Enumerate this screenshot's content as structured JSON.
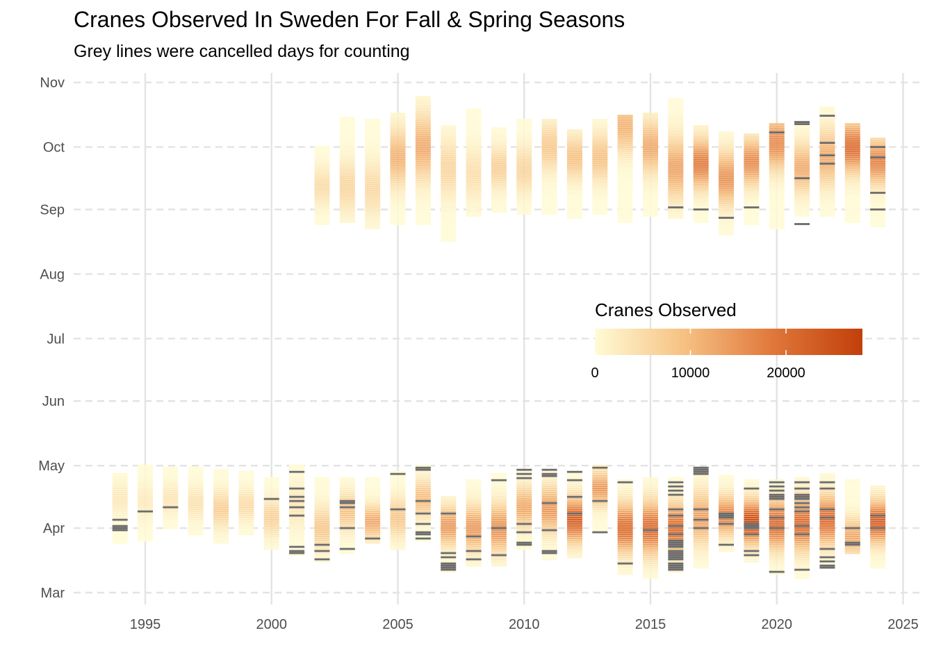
{
  "chart_data": {
    "type": "heatmap",
    "title": "Cranes Observed In Sweden For Fall & Spring Seasons",
    "subtitle": "Grey lines were cancelled days for counting",
    "xlabel": "",
    "ylabel": "",
    "x_ticks": [
      "1995",
      "2000",
      "2005",
      "2010",
      "2015",
      "2020",
      "2025"
    ],
    "y_ticks": [
      "Mar",
      "Apr",
      "May",
      "Jun",
      "Jul",
      "Aug",
      "Sep",
      "Oct",
      "Nov"
    ],
    "xlim": [
      1992.2,
      2025.7
    ],
    "grid": true,
    "legend": {
      "title": "Cranes Observed",
      "ticks": [
        "0",
        "10000",
        "20000"
      ],
      "min": 0,
      "max": 28000,
      "colors": [
        "#fffbd5",
        "#f6c183",
        "#e0773a",
        "#c13f0a"
      ],
      "placement": "inside-center-right",
      "cancelled_color": "#6b6b6b"
    },
    "spring": [
      {
        "year": 1994,
        "start": "Mar 25",
        "end": "Apr 27",
        "peak": "Apr 15",
        "peak_value": 3000,
        "cancelled": [
          "Mar 31",
          "Apr 1",
          "Apr 2",
          "Apr 5"
        ]
      },
      {
        "year": 1995,
        "start": "Mar 26",
        "end": "May 1",
        "peak": "Apr 14",
        "peak_value": 2500,
        "cancelled": [
          "Apr 9"
        ]
      },
      {
        "year": 1996,
        "start": "Apr 1",
        "end": "Apr 30",
        "peak": "Apr 15",
        "peak_value": 3500,
        "cancelled": [
          "Apr 11"
        ]
      },
      {
        "year": 1997,
        "start": "Mar 29",
        "end": "Apr 30",
        "peak": "Apr 13",
        "peak_value": 4000,
        "cancelled": []
      },
      {
        "year": 1998,
        "start": "Mar 25",
        "end": "Apr 29",
        "peak": "Apr 10",
        "peak_value": 7000,
        "cancelled": []
      },
      {
        "year": 1999,
        "start": "Mar 29",
        "end": "Apr 28",
        "peak": "Apr 12",
        "peak_value": 5000,
        "cancelled": []
      },
      {
        "year": 2000,
        "start": "Mar 22",
        "end": "Apr 25",
        "peak": "Apr 6",
        "peak_value": 6500,
        "cancelled": [
          "Apr 15"
        ]
      },
      {
        "year": 2001,
        "start": "Mar 19",
        "end": "May 1",
        "peak": "Apr 12",
        "peak_value": 3500,
        "cancelled": [
          "Mar 20",
          "Mar 21",
          "Mar 23",
          "Apr 7",
          "Apr 11",
          "Apr 14",
          "Apr 16",
          "Apr 20",
          "Apr 28"
        ]
      },
      {
        "year": 2002,
        "start": "Mar 16",
        "end": "Apr 25",
        "peak": "Apr 1",
        "peak_value": 8000,
        "cancelled": [
          "Mar 17",
          "Mar 21",
          "Mar 24"
        ]
      },
      {
        "year": 2003,
        "start": "Mar 20",
        "end": "Apr 25",
        "peak": "Apr 9",
        "peak_value": 8500,
        "cancelled": [
          "Mar 22",
          "Apr 1",
          "Apr 11",
          "Apr 13",
          "Apr 14"
        ]
      },
      {
        "year": 2004,
        "start": "Mar 25",
        "end": "Apr 25",
        "peak": "Apr 4",
        "peak_value": 12000,
        "cancelled": [
          "Mar 27"
        ]
      },
      {
        "year": 2005,
        "start": "Mar 22",
        "end": "Apr 28",
        "peak": "Apr 6",
        "peak_value": 8000,
        "cancelled": [
          "Apr 10",
          "Apr 27"
        ]
      },
      {
        "year": 2006,
        "start": "Mar 26",
        "end": "May 1",
        "peak": "Apr 15",
        "peak_value": 9500,
        "cancelled": [
          "Mar 27",
          "Mar 29",
          "Mar 30",
          "Apr 3",
          "Apr 8",
          "Apr 14",
          "Apr 29",
          "Apr 30"
        ]
      },
      {
        "year": 2007,
        "start": "Mar 11",
        "end": "Apr 16",
        "peak": "Apr 2",
        "peak_value": 14000,
        "cancelled": [
          "Mar 12",
          "Mar 13",
          "Mar 14",
          "Mar 15",
          "Mar 18",
          "Mar 20",
          "Apr 8"
        ]
      },
      {
        "year": 2008,
        "start": "Mar 14",
        "end": "Apr 24",
        "peak": "Apr 1",
        "peak_value": 14000,
        "cancelled": [
          "Mar 17",
          "Mar 21",
          "Mar 28"
        ]
      },
      {
        "year": 2009,
        "start": "Mar 14",
        "end": "Apr 27",
        "peak": "Apr 1",
        "peak_value": 15000,
        "cancelled": [
          "Mar 19",
          "Apr 1",
          "Apr 24"
        ]
      },
      {
        "year": 2010,
        "start": "Mar 22",
        "end": "Apr 29",
        "peak": "Apr 11",
        "peak_value": 12000,
        "cancelled": [
          "Mar 24",
          "Mar 25",
          "Mar 30",
          "Apr 3",
          "Apr 25",
          "Apr 27",
          "Apr 29"
        ]
      },
      {
        "year": 2011,
        "start": "Mar 17",
        "end": "Apr 29",
        "peak": "Apr 10",
        "peak_value": 14000,
        "cancelled": [
          "Mar 20",
          "Mar 21",
          "Mar 31",
          "Apr 13",
          "Apr 26",
          "Apr 27",
          "Apr 29"
        ]
      },
      {
        "year": 2012,
        "start": "Mar 18",
        "end": "Apr 28",
        "peak": "Apr 5",
        "peak_value": 22000,
        "cancelled": [
          "Apr 8",
          "Apr 16",
          "Apr 24",
          "Apr 28"
        ]
      },
      {
        "year": 2013,
        "start": "Mar 30",
        "end": "May 1",
        "peak": "Apr 20",
        "peak_value": 14000,
        "cancelled": [
          "Mar 30",
          "Apr 14",
          "Apr 30"
        ]
      },
      {
        "year": 2014,
        "start": "Mar 10",
        "end": "Apr 24",
        "peak": "Apr 1",
        "peak_value": 20000,
        "cancelled": [
          "Mar 15",
          "Apr 23"
        ]
      },
      {
        "year": 2015,
        "start": "Mar 8",
        "end": "Apr 25",
        "peak": "Apr 1",
        "peak_value": 20000,
        "cancelled": [
          "Mar 31"
        ]
      },
      {
        "year": 2016,
        "start": "Mar 11",
        "end": "Apr 25",
        "peak": "Apr 1",
        "peak_value": 20000,
        "cancelled": [
          "Mar 12",
          "Mar 13",
          "Mar 14",
          "Mar 15",
          "Mar 17",
          "Mar 18",
          "Mar 19",
          "Mar 20",
          "Mar 21",
          "Mar 23",
          "Mar 24",
          "Mar 25",
          "Mar 26",
          "Mar 29",
          "Apr 2",
          "Apr 7",
          "Apr 10",
          "Apr 17",
          "Apr 19",
          "Apr 21",
          "Apr 23"
        ]
      },
      {
        "year": 2017,
        "start": "Mar 13",
        "end": "Apr 30",
        "peak": "Apr 6",
        "peak_value": 13000,
        "cancelled": [
          "Apr 1",
          "Apr 5",
          "Apr 10",
          "Apr 27",
          "Apr 28",
          "Apr 29",
          "Apr 30"
        ]
      },
      {
        "year": 2018,
        "start": "Mar 21",
        "end": "Apr 26",
        "peak": "Apr 7",
        "peak_value": 17000,
        "cancelled": [
          "Mar 24",
          "Apr 3",
          "Apr 6",
          "Apr 7",
          "Apr 8"
        ]
      },
      {
        "year": 2019,
        "start": "Mar 16",
        "end": "Apr 24",
        "peak": "Apr 4",
        "peak_value": 25000,
        "cancelled": [
          "Mar 19",
          "Mar 21",
          "Mar 29",
          "Apr 1",
          "Apr 2",
          "Apr 3",
          "Apr 20"
        ]
      },
      {
        "year": 2020,
        "start": "Mar 10",
        "end": "Apr 24",
        "peak": "Apr 3",
        "peak_value": 20000,
        "cancelled": [
          "Mar 11",
          "Apr 1",
          "Apr 6",
          "Apr 10",
          "Apr 15",
          "Apr 16",
          "Apr 17",
          "Apr 19",
          "Apr 21",
          "Apr 23"
        ]
      },
      {
        "year": 2021,
        "start": "Mar 8",
        "end": "Apr 25",
        "peak": "Apr 3",
        "peak_value": 20000,
        "cancelled": [
          "Mar 12",
          "Mar 29",
          "Apr 2",
          "Apr 9",
          "Apr 11",
          "Apr 13",
          "Apr 15",
          "Apr 16",
          "Apr 17",
          "Apr 20",
          "Apr 23"
        ]
      },
      {
        "year": 2022,
        "start": "Mar 13",
        "end": "Apr 27",
        "peak": "Apr 5",
        "peak_value": 20000,
        "cancelled": [
          "Mar 13",
          "Mar 14",
          "Mar 16",
          "Mar 18",
          "Mar 22",
          "Apr 6",
          "Apr 10",
          "Apr 20",
          "Apr 23"
        ]
      },
      {
        "year": 2023,
        "start": "Mar 20",
        "end": "Apr 24",
        "peak": "Mar 28",
        "peak_value": 12000,
        "cancelled": [
          "Mar 24",
          "Mar 25",
          "Apr 1"
        ]
      },
      {
        "year": 2024,
        "start": "Mar 13",
        "end": "Apr 21",
        "peak": "Apr 4",
        "peak_value": 22000,
        "cancelled": [
          "Apr 1",
          "Apr 7"
        ]
      }
    ],
    "fall": [
      {
        "year": 2002,
        "start": "Aug 25",
        "end": "Oct 1",
        "peak": "Sep 12",
        "peak_value": 5000,
        "cancelled": []
      },
      {
        "year": 2003,
        "start": "Aug 26",
        "end": "Oct 15",
        "peak": "Sep 12",
        "peak_value": 6000,
        "cancelled": []
      },
      {
        "year": 2004,
        "start": "Aug 23",
        "end": "Oct 14",
        "peak": "Sep 11",
        "peak_value": 5500,
        "cancelled": []
      },
      {
        "year": 2005,
        "start": "Aug 25",
        "end": "Oct 17",
        "peak": "Sep 26",
        "peak_value": 11000,
        "cancelled": []
      },
      {
        "year": 2006,
        "start": "Aug 25",
        "end": "Oct 25",
        "peak": "Oct 1",
        "peak_value": 12000,
        "cancelled": []
      },
      {
        "year": 2007,
        "start": "Aug 17",
        "end": "Oct 11",
        "peak": "Sep 21",
        "peak_value": 6000,
        "cancelled": []
      },
      {
        "year": 2008,
        "start": "Aug 29",
        "end": "Oct 19",
        "peak": "Sep 18",
        "peak_value": 4500,
        "cancelled": []
      },
      {
        "year": 2009,
        "start": "Aug 31",
        "end": "Oct 10",
        "peak": "Sep 21",
        "peak_value": 7000,
        "cancelled": []
      },
      {
        "year": 2010,
        "start": "Aug 30",
        "end": "Oct 14",
        "peak": "Sep 20",
        "peak_value": 6000,
        "cancelled": []
      },
      {
        "year": 2011,
        "start": "Aug 30",
        "end": "Oct 14",
        "peak": "Oct 1",
        "peak_value": 8000,
        "cancelled": []
      },
      {
        "year": 2012,
        "start": "Aug 28",
        "end": "Oct 9",
        "peak": "Sep 26",
        "peak_value": 9000,
        "cancelled": []
      },
      {
        "year": 2013,
        "start": "Aug 30",
        "end": "Oct 14",
        "peak": "Sep 26",
        "peak_value": 9000,
        "cancelled": []
      },
      {
        "year": 2014,
        "start": "Aug 26",
        "end": "Oct 16",
        "peak": "Oct 11",
        "peak_value": 11000,
        "cancelled": []
      },
      {
        "year": 2015,
        "start": "Aug 29",
        "end": "Oct 17",
        "peak": "Oct 1",
        "peak_value": 12000,
        "cancelled": []
      },
      {
        "year": 2016,
        "start": "Aug 28",
        "end": "Oct 24",
        "peak": "Sep 21",
        "peak_value": 13000,
        "cancelled": [
          "Sep 2"
        ]
      },
      {
        "year": 2017,
        "start": "Aug 26",
        "end": "Oct 11",
        "peak": "Sep 23",
        "peak_value": 18000,
        "cancelled": [
          "Sep 1"
        ]
      },
      {
        "year": 2018,
        "start": "Aug 20",
        "end": "Oct 8",
        "peak": "Sep 16",
        "peak_value": 15000,
        "cancelled": [
          "Aug 28"
        ]
      },
      {
        "year": 2019,
        "start": "Aug 25",
        "end": "Oct 7",
        "peak": "Sep 24",
        "peak_value": 16000,
        "cancelled": [
          "Sep 2"
        ]
      },
      {
        "year": 2020,
        "start": "Aug 23",
        "end": "Oct 12",
        "peak": "Oct 3",
        "peak_value": 16000,
        "cancelled": [
          "Oct 8"
        ]
      },
      {
        "year": 2021,
        "start": "Aug 29",
        "end": "Oct 13",
        "peak": "Sep 21",
        "peak_value": 12000,
        "cancelled": [
          "Aug 25",
          "Sep 16",
          "Oct 12",
          "Oct 13"
        ]
      },
      {
        "year": 2022,
        "start": "Aug 29",
        "end": "Oct 20",
        "peak": "Sep 26",
        "peak_value": 12000,
        "cancelled": [
          "Sep 23",
          "Sep 27",
          "Oct 3",
          "Oct 16"
        ]
      },
      {
        "year": 2023,
        "start": "Aug 26",
        "end": "Oct 12",
        "peak": "Oct 1",
        "peak_value": 20000,
        "cancelled": []
      },
      {
        "year": 2024,
        "start": "Aug 24",
        "end": "Oct 5",
        "peak": "Sep 24",
        "peak_value": 17000,
        "cancelled": [
          "Sep 1",
          "Sep 9",
          "Sep 26",
          "Oct 1"
        ]
      }
    ]
  }
}
